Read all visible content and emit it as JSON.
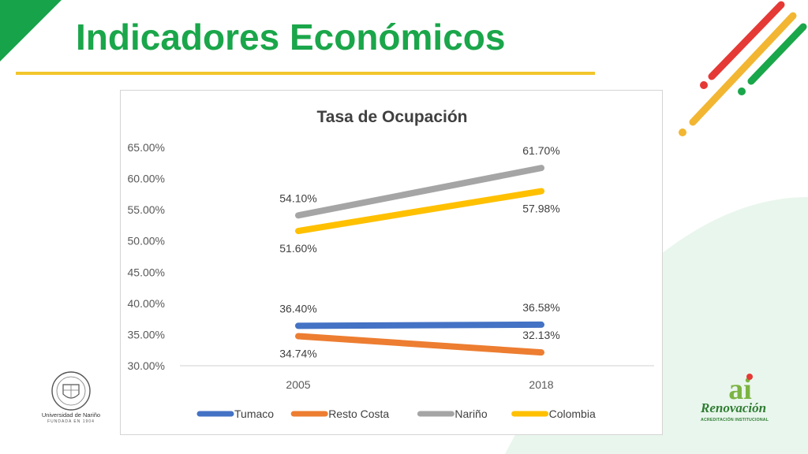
{
  "slide": {
    "title": "Indicadores Económicos",
    "colors": {
      "green": "#1aa64a",
      "yellow": "#f2c62c",
      "red": "#e53935",
      "blob": "#e8f5ec"
    }
  },
  "logos": {
    "left_name": "Universidad de Nariño",
    "left_sub": "FUNDADA EN 1904",
    "right_brand": "Renovación",
    "right_sub": "ACREDITACIÓN INSTITUCIONAL",
    "right_monogram": "ai"
  },
  "chart_data": {
    "type": "line",
    "title": "Tasa de Ocupación",
    "categories": [
      "2005",
      "2018"
    ],
    "ylim": [
      30,
      65
    ],
    "yticks": [
      "30.00%",
      "35.00%",
      "40.00%",
      "45.00%",
      "50.00%",
      "55.00%",
      "60.00%",
      "65.00%"
    ],
    "grid": false,
    "legend_position": "bottom",
    "series": [
      {
        "name": "Tumaco",
        "color": "#4472c4",
        "values": [
          36.4,
          36.58
        ],
        "labels": [
          "36.40%",
          "36.58%"
        ],
        "label_pos": [
          "above",
          "above"
        ]
      },
      {
        "name": "Resto Costa",
        "color": "#ed7d31",
        "values": [
          34.74,
          32.13
        ],
        "labels": [
          "34.74%",
          "32.13%"
        ],
        "label_pos": [
          "below",
          "above"
        ]
      },
      {
        "name": "Nariño",
        "color": "#a5a5a5",
        "values": [
          54.1,
          61.7
        ],
        "labels": [
          "54.10%",
          "61.70%"
        ],
        "label_pos": [
          "above",
          "above"
        ]
      },
      {
        "name": "Colombia",
        "color": "#ffc000",
        "values": [
          51.6,
          57.98
        ],
        "labels": [
          "51.60%",
          "57.98%"
        ],
        "label_pos": [
          "below",
          "below"
        ]
      }
    ]
  }
}
